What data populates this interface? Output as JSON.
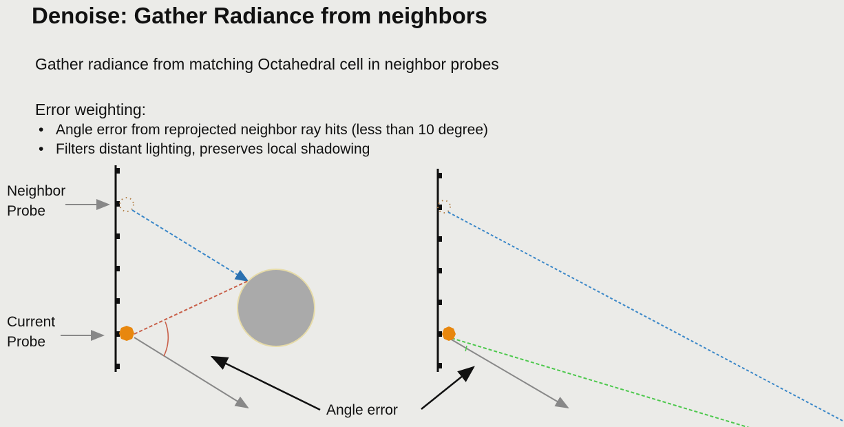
{
  "title": "Denoise: Gather Radiance from neighbors",
  "subtitle": "Gather radiance from matching Octahedral cell in neighbor probes",
  "error_weighting": {
    "heading": "Error weighting:",
    "bullets": [
      "Angle error from reprojected neighbor ray hits (less than 10 degree)",
      "Filters distant lighting, preserves local shadowing"
    ]
  },
  "diagram": {
    "neighbor_probe_label": [
      "Neighbor",
      "Probe"
    ],
    "current_probe_label": [
      "Current",
      "Probe"
    ],
    "angle_error_label": "Angle error",
    "colors": {
      "probe": "#e8870e",
      "neighbor_ray": "#3a87c8",
      "reprojected_ray": "#c8604a",
      "green_ray": "#4cc84c",
      "occluder": "#aaaaaa",
      "background": "#ebebe8"
    }
  }
}
